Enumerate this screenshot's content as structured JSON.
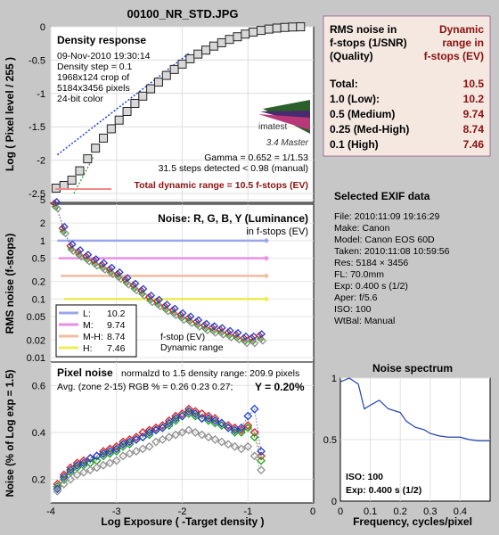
{
  "title": "00100_NR_STD.JPG",
  "colors": {
    "bg": "#c7c7c7",
    "panel": "#ffffff",
    "rms_box": "#f4e8e0",
    "title": "#6a0e5a",
    "dr_label": "#8b1111",
    "L": "#9aa6ee",
    "M": "#e98ee6",
    "MH": "#f1bca0",
    "H": "#ecec55",
    "red": "#d82020",
    "green": "#20a020",
    "blue": "#2040d0",
    "gray": "#909090",
    "spectrum": "#2040b0"
  },
  "density": {
    "header": "Density response",
    "info": [
      "09-Nov-2010 19:30:14",
      "Density step = 0.1",
      "1968x124 crop of",
      "5184x3456 pixels",
      "24-bit color"
    ],
    "logo_text": "imatest",
    "logo_sub": "3.4  Master",
    "gamma": "Gamma = 0.652 = 1/1.53",
    "steps": "31.5 steps detected < 0.98 (manual)",
    "total_dr": "Total dynamic range = 10.5 f-stops (EV)",
    "ylabel": "Log ( Pixel level / 255 )"
  },
  "noise_panel": {
    "header": "Noise: R, G, B, Y (Luminance)",
    "sub": "in f-stops (EV)",
    "ylabel": "RMS noise (f-stops)",
    "legend": [
      {
        "label": "L:",
        "value": "10.2"
      },
      {
        "label": "M:",
        "value": "9.74"
      },
      {
        "label": "M-H:",
        "value": "8.74"
      },
      {
        "label": "H:",
        "value": "7.46"
      }
    ],
    "legend_note_1": "f-stop (EV)",
    "legend_note_2": "Dynamic range"
  },
  "pixel_noise": {
    "header": "Pixel noise",
    "normalized": "normalzd to 1.5 density range: 209.9 pixels",
    "avg": "Avg. (zone 2-15) RGB % = 0.26  0.23  0.27;",
    "y_value": "Y = 0.20%",
    "ylabel": "Noise (% of Log exp = 1.5)",
    "xlabel": "Log Exposure ( -Target density )"
  },
  "rms_table": {
    "col1": [
      "RMS noise in",
      "f-stops (1/SNR)",
      "(Quality)"
    ],
    "col2": [
      "Dynamic",
      "range in",
      "f-stops (EV)"
    ],
    "rows": [
      {
        "label": "Total:",
        "value": "10.5"
      },
      {
        "label": "1.0    (Low):",
        "value": "10.2"
      },
      {
        "label": "0.5    (Medium)",
        "value": "9.74"
      },
      {
        "label": "0.25 (Med-High)",
        "value": "8.74"
      },
      {
        "label": "0.1    (High)",
        "value": "7.46"
      }
    ]
  },
  "exif": {
    "header": "Selected EXIF data",
    "lines": [
      "File:  2010:11:09 19:16:29",
      "Make:  Canon",
      "Model: Canon EOS 60D",
      "Taken: 2010:11:08 10:59:56",
      "Res:   5184 × 3456",
      "FL:  70.0mm",
      "Exp:  0.400 s  (1/2)",
      "Aper:  f/5.6",
      "ISO:  100",
      "WtBal: Manual"
    ]
  },
  "spectrum": {
    "header": "Noise spectrum",
    "xlabel": "Frequency, cycles/pixel",
    "iso": "ISO:    100",
    "exp": "Exp:  0.400 s   (1/2)"
  },
  "chart_data": [
    {
      "type": "scatter",
      "title": "Density response",
      "xlim": [
        -4,
        0
      ],
      "ylim": [
        -2.5,
        0
      ],
      "yticks": [
        "0",
        "-0.5",
        "-1",
        "-1.5",
        "-2",
        "-2.5"
      ],
      "x": [
        -3.92,
        -3.8,
        -3.68,
        -3.56,
        -3.44,
        -3.32,
        -3.2,
        -3.08,
        -2.96,
        -2.84,
        -2.72,
        -2.6,
        -2.48,
        -2.36,
        -2.24,
        -2.12,
        -2.0,
        -1.88,
        -1.76,
        -1.64,
        -1.52,
        -1.4,
        -1.28,
        -1.16,
        -1.04,
        -0.92,
        -0.8,
        -0.68,
        -0.56,
        -0.44,
        -0.32,
        -0.2
      ],
      "y": [
        -2.42,
        -2.38,
        -2.3,
        -2.16,
        -1.98,
        -1.82,
        -1.67,
        -1.53,
        -1.4,
        -1.27,
        -1.15,
        -1.04,
        -0.93,
        -0.83,
        -0.73,
        -0.64,
        -0.56,
        -0.48,
        -0.41,
        -0.35,
        -0.29,
        -0.24,
        -0.19,
        -0.15,
        -0.11,
        -0.08,
        -0.055,
        -0.035,
        -0.02,
        -0.01,
        -0.004,
        -0.001
      ],
      "series": [
        {
          "name": "Gamma = 0.652 = 1/1.53"
        }
      ]
    },
    {
      "type": "line",
      "title": "Noise: R, G, B, Y (Luminance)",
      "yscale": "log",
      "ylim": [
        0.01,
        5
      ],
      "yticks": [
        "5",
        "2",
        "1",
        "0.5",
        "0.2",
        "0.1",
        "0.05",
        "0.02",
        "0.01"
      ],
      "xlim": [
        -4,
        0
      ],
      "series": [
        {
          "name": "L: 10.2",
          "y": 1.0,
          "x": [
            -3.9,
            -0.72
          ]
        },
        {
          "name": "M: 9.74",
          "y": 0.5,
          "x": [
            -3.88,
            -0.72
          ]
        },
        {
          "name": "M-H: 8.74",
          "y": 0.25,
          "x": [
            -3.85,
            -0.72
          ]
        },
        {
          "name": "H: 7.46",
          "y": 0.1,
          "x": [
            -3.8,
            -0.72
          ]
        }
      ],
      "x": [
        -3.92,
        -3.8,
        -3.68,
        -3.56,
        -3.44,
        -3.32,
        -3.2,
        -3.08,
        -2.96,
        -2.84,
        -2.72,
        -2.6,
        -2.48,
        -2.36,
        -2.24,
        -2.12,
        -2.0,
        -1.88,
        -1.76,
        -1.64,
        -1.52,
        -1.4,
        -1.28,
        -1.16,
        -1.04,
        -0.92,
        -0.8
      ],
      "y": [
        4.0,
        1.5,
        0.75,
        0.6,
        0.5,
        0.42,
        0.36,
        0.3,
        0.25,
        0.2,
        0.16,
        0.13,
        0.1,
        0.085,
        0.07,
        0.06,
        0.05,
        0.044,
        0.038,
        0.033,
        0.03,
        0.028,
        0.025,
        0.023,
        0.02,
        0.02,
        0.022
      ]
    },
    {
      "type": "scatter",
      "title": "Pixel noise",
      "xlabel": "Log Exposure ( -Target density )",
      "ylabel": "Noise (% of Log exp = 1.5)",
      "xlim": [
        -4,
        0
      ],
      "ylim": [
        0.1,
        0.7
      ],
      "xticks": [
        "-4",
        "-3",
        "-2",
        "-1",
        "0"
      ],
      "yticks": [
        "0.6",
        "0.4",
        "0.2"
      ],
      "x": [
        -3.9,
        -3.8,
        -3.7,
        -3.6,
        -3.5,
        -3.4,
        -3.3,
        -3.2,
        -3.1,
        -3.0,
        -2.9,
        -2.8,
        -2.7,
        -2.6,
        -2.5,
        -2.4,
        -2.3,
        -2.2,
        -2.1,
        -2.0,
        -1.9,
        -1.8,
        -1.7,
        -1.6,
        -1.5,
        -1.4,
        -1.3,
        -1.2,
        -1.1,
        -1.0,
        -0.9,
        -0.8
      ],
      "series": [
        {
          "name": "R",
          "y": [
            0.18,
            0.22,
            0.25,
            0.27,
            0.28,
            0.29,
            0.3,
            0.32,
            0.33,
            0.34,
            0.36,
            0.37,
            0.38,
            0.4,
            0.41,
            0.42,
            0.43,
            0.45,
            0.47,
            0.48,
            0.5,
            0.49,
            0.48,
            0.47,
            0.46,
            0.44,
            0.43,
            0.42,
            0.41,
            0.43,
            0.4,
            0.3
          ]
        },
        {
          "name": "G",
          "y": [
            0.17,
            0.2,
            0.23,
            0.25,
            0.26,
            0.27,
            0.28,
            0.3,
            0.31,
            0.32,
            0.34,
            0.35,
            0.37,
            0.38,
            0.39,
            0.41,
            0.42,
            0.43,
            0.45,
            0.47,
            0.48,
            0.47,
            0.46,
            0.45,
            0.44,
            0.43,
            0.42,
            0.4,
            0.4,
            0.42,
            0.38,
            0.28
          ]
        },
        {
          "name": "B",
          "y": [
            0.16,
            0.21,
            0.24,
            0.26,
            0.27,
            0.29,
            0.3,
            0.31,
            0.32,
            0.33,
            0.35,
            0.36,
            0.37,
            0.38,
            0.4,
            0.41,
            0.42,
            0.44,
            0.46,
            0.47,
            0.49,
            0.48,
            0.46,
            0.46,
            0.45,
            0.44,
            0.42,
            0.41,
            0.42,
            0.47,
            0.5,
            0.32
          ]
        },
        {
          "name": "Y",
          "y": [
            0.15,
            0.18,
            0.2,
            0.22,
            0.23,
            0.24,
            0.25,
            0.26,
            0.27,
            0.28,
            0.3,
            0.31,
            0.32,
            0.33,
            0.34,
            0.36,
            0.37,
            0.38,
            0.39,
            0.4,
            0.41,
            0.4,
            0.39,
            0.38,
            0.37,
            0.36,
            0.35,
            0.34,
            0.33,
            0.34,
            0.3,
            0.24
          ]
        }
      ]
    },
    {
      "type": "line",
      "title": "Noise spectrum",
      "xlabel": "Frequency, cycles/pixel",
      "xlim": [
        0,
        0.5
      ],
      "ylim": [
        0,
        1
      ],
      "xticks": [
        "0",
        "0.1",
        "0.2",
        "0.3",
        "0.4"
      ],
      "yticks": [
        "1",
        "0.5",
        "0"
      ],
      "x": [
        0.0,
        0.03,
        0.06,
        0.08,
        0.1,
        0.13,
        0.16,
        0.2,
        0.22,
        0.25,
        0.28,
        0.3,
        0.33,
        0.36,
        0.4,
        0.43,
        0.46,
        0.5
      ],
      "y": [
        0.97,
        1.0,
        0.95,
        0.75,
        0.78,
        0.82,
        0.75,
        0.72,
        0.65,
        0.6,
        0.58,
        0.55,
        0.53,
        0.52,
        0.52,
        0.5,
        0.49,
        0.49
      ]
    }
  ]
}
